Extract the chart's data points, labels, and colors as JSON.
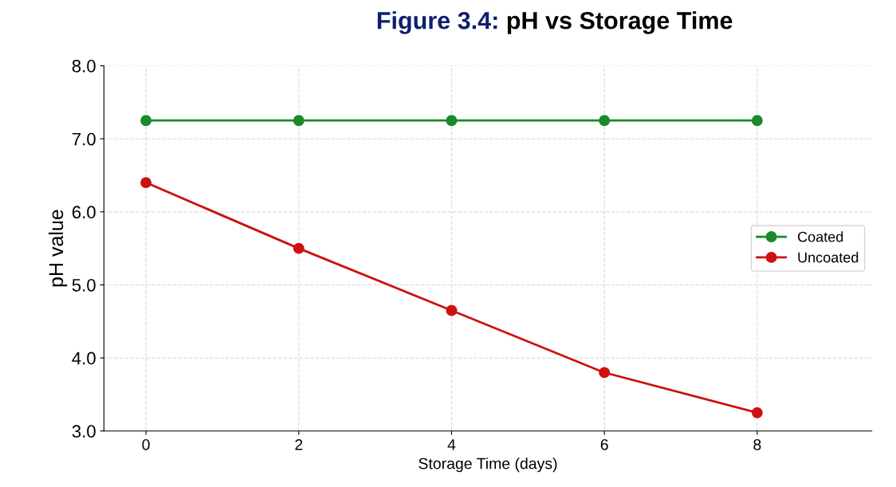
{
  "chart_data": {
    "type": "line",
    "title": "Figure 3.4: pH vs Storage Time",
    "xlabel": "Storage Time (days)",
    "ylabel": "pH value",
    "x": [
      0,
      2,
      4,
      6,
      8
    ],
    "series": [
      {
        "name": "Coated",
        "color": "#1a8a2a",
        "values": [
          7.25,
          7.25,
          7.25,
          7.25,
          7.25
        ]
      },
      {
        "name": "Uncoated",
        "color": "#cc1111",
        "values": [
          6.4,
          5.5,
          4.65,
          3.8,
          3.25
        ]
      }
    ],
    "xlim": [
      -0.55,
      9.5
    ],
    "xticks": [
      0,
      2,
      4,
      6,
      8
    ],
    "ylim": [
      3.0,
      8.0
    ],
    "yticks": [
      {
        "value": 3.0,
        "label": "3.0"
      },
      {
        "value": 4.0,
        "label": "4.0"
      },
      {
        "value": 5.0,
        "label": "5.0"
      },
      {
        "value": 6.0,
        "label": "6.0"
      },
      {
        "value": 7.0,
        "label": "7.0"
      },
      {
        "value": 8.0,
        "label": "8.0"
      }
    ],
    "grid": true,
    "legend": "right",
    "marker": "circle",
    "line_style": "solid"
  }
}
